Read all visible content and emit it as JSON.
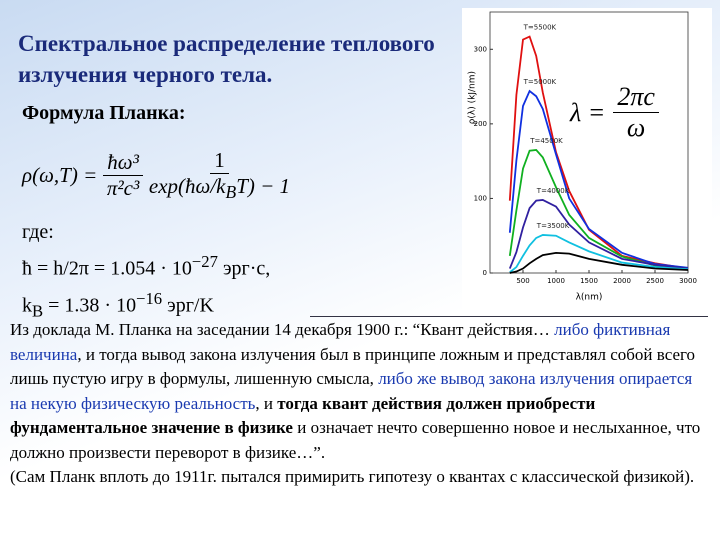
{
  "title": "Спектральное распределение теплового излучения черного тела.",
  "formula_heading": "Формула Планка:",
  "planck": {
    "lhs": "ρ(ω,T) =",
    "num1": "ħω³",
    "den1": "π²c³",
    "num2": "1",
    "den2_a": "exp(ħω/k",
    "den2_sub": "B",
    "den2_b": "T) − 1"
  },
  "where": {
    "label": "где:",
    "hbar_a": "ħ = h/2π = 1.054 · 10",
    "hbar_exp": "−27",
    "hbar_b": " эрг·с,",
    "kb_a": "k",
    "kb_sub": "B",
    "kb_b": " = 1.38 · 10",
    "kb_exp": "−16",
    "kb_c": " эрг/K"
  },
  "lambda_formula": {
    "lhs": "λ =",
    "num": "2πc",
    "den": "ω"
  },
  "quote": {
    "segments": [
      {
        "text": "Из доклада М. Планка на заседании 14 декабря 1900 г.: “Квант действия… ",
        "style": "normal"
      },
      {
        "text": "либо фиктивная величина",
        "style": "blue"
      },
      {
        "text": ", и тогда вывод закона излучения был в принципе ложным и представлял собой всего лишь пустую игру в формулы, лишенную смысла, ",
        "style": "normal"
      },
      {
        "text": "либо же вывод закона излучения опирается на некую физическую реальность",
        "style": "blue"
      },
      {
        "text": ", и ",
        "style": "normal"
      },
      {
        "text": "тогда квант действия должен приобрести фундаментальное значение в физике",
        "style": "bold"
      },
      {
        "text": " и означает нечто совершенно новое и неслыханное, что должно произвести переворот в физике…”.",
        "style": "normal"
      }
    ],
    "note": "(Сам Планк вплоть до 1911г. пытался примирить гипотезу о квантах с классической физикой)."
  },
  "chart_data": {
    "type": "line",
    "x_label": "λ(nm)",
    "y_label": "ρ(λ) (kJ/nm)",
    "x": [
      300,
      400,
      500,
      600,
      700,
      800,
      1000,
      1200,
      1500,
      2000,
      2500,
      3000
    ],
    "xlim": [
      0,
      3000
    ],
    "xticks": [
      500,
      1000,
      1500,
      2000,
      2500,
      3000
    ],
    "ylim": [
      0,
      350
    ],
    "yticks": [
      0,
      100,
      200,
      300
    ],
    "series": [
      {
        "name": "T=5500K",
        "color": "#e01010",
        "values": [
          97,
          239,
          313,
          317,
          291,
          242,
          162,
          110,
          58,
          23,
          13,
          6
        ]
      },
      {
        "name": "T=5000K",
        "color": "#1030e0",
        "values": [
          54,
          151,
          224,
          244,
          237,
          220,
          159,
          100,
          59,
          27,
          12,
          7
        ]
      },
      {
        "name": "T=4500K",
        "color": "#10b020",
        "values": [
          23,
          84,
          140,
          164,
          165,
          155,
          115,
          78,
          47,
          22,
          10,
          6
        ]
      },
      {
        "name": "T=4000K",
        "color": "#3020a0",
        "values": [
          6,
          28,
          61,
          87,
          97,
          98,
          89,
          65,
          41,
          19,
          11,
          6
        ]
      },
      {
        "name": "T=3500K",
        "color": "#10c0e0",
        "values": [
          1,
          8,
          23,
          37,
          47,
          51,
          50,
          41,
          29,
          14,
          8,
          5
        ]
      },
      {
        "name": null,
        "color": "#000000",
        "values": [
          0,
          2,
          6,
          13,
          19,
          24,
          27,
          26,
          19,
          11,
          6,
          4
        ]
      }
    ]
  }
}
